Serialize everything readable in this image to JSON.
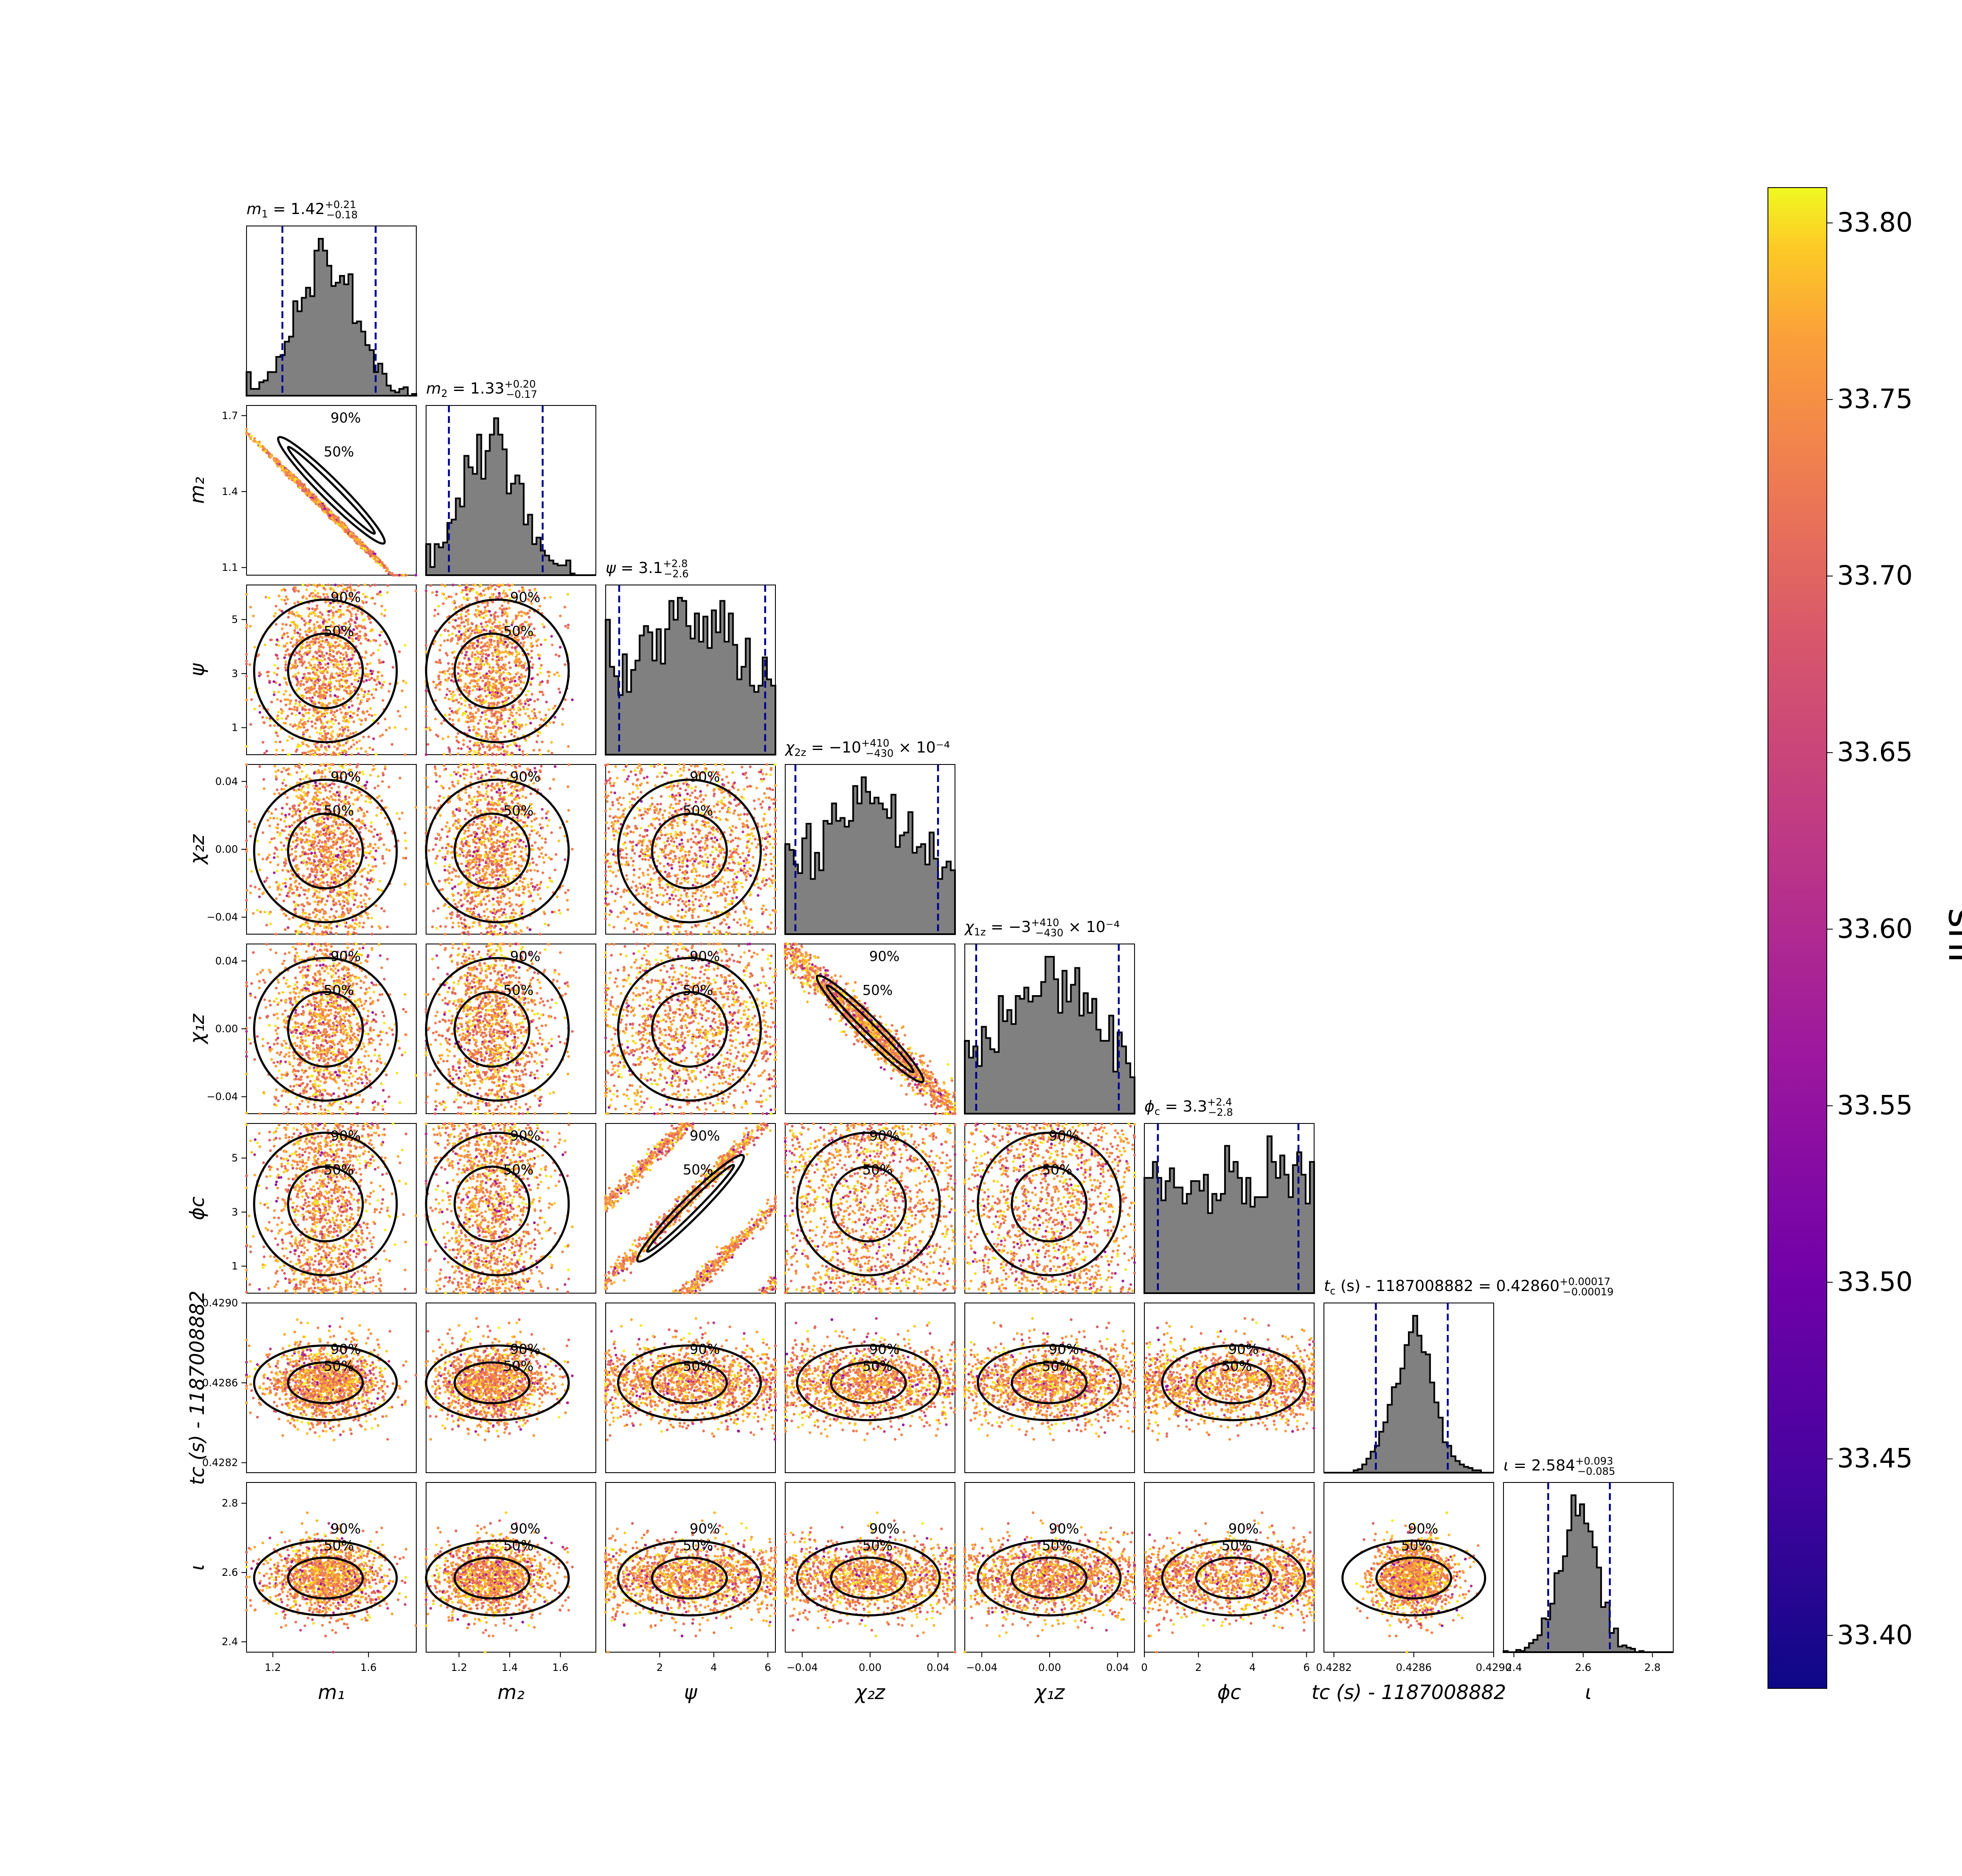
{
  "chart_data": {
    "type": "corner",
    "parameters": [
      {
        "key": "m1",
        "label": "m₁",
        "title": "m₁ = 1.42 (+0.21 / −0.18)",
        "title_main": "m",
        "title_sub": "1",
        "title_val": "= 1.42",
        "title_up": "+0.21",
        "title_dn": "−0.18",
        "median": 1.42,
        "err_plus": 0.21,
        "err_minus": 0.18,
        "range": [
          1.09,
          1.8
        ],
        "ticks": [
          1.2,
          1.6
        ],
        "tick_labels": [
          "1.2",
          "1.6"
        ],
        "sd": 0.12,
        "skew": 0.0
      },
      {
        "key": "m2",
        "label": "m₂",
        "title": "m₂ = 1.33 (+0.20 / −0.17)",
        "title_main": "m",
        "title_sub": "2",
        "title_val": "= 1.33",
        "title_up": "+0.20",
        "title_dn": "−0.17",
        "median": 1.33,
        "err_plus": 0.2,
        "err_minus": 0.17,
        "range": [
          1.07,
          1.74
        ],
        "ticks": [
          1.1,
          1.4,
          1.7
        ],
        "tick_labels": [
          "1.1",
          "1.4",
          "1.7"
        ],
        "x_ticks": [
          1.2,
          1.4,
          1.6
        ],
        "x_tick_labels": [
          "1.2",
          "1.4",
          "1.6"
        ],
        "sd": 0.115,
        "skew": 0.0
      },
      {
        "key": "psi",
        "label": "ψ",
        "title": "ψ = 3.1 (+2.8 / −2.6)",
        "title_main": "ψ",
        "title_sub": "",
        "title_val": "= 3.1",
        "title_up": "+2.8",
        "title_dn": "−2.6",
        "median": 3.1,
        "err_plus": 2.8,
        "err_minus": 2.6,
        "range": [
          0.0,
          6.28
        ],
        "ticks": [
          1,
          3,
          5
        ],
        "tick_labels": [
          "1",
          "3",
          "5"
        ],
        "x_ticks": [
          2,
          4,
          6
        ],
        "x_tick_labels": [
          "2",
          "4",
          "6"
        ],
        "sd": 1.9,
        "skew": 0.0
      },
      {
        "key": "chi2z",
        "label": "χ₂z",
        "title": "χ₂z = −10 (+410 / −430) × 10⁻⁴",
        "title_main": "χ",
        "title_sub": "2z",
        "title_val": "= −10",
        "title_up": "+410",
        "title_dn": "−430",
        "title_suffix": "× 10⁻⁴",
        "median": -0.001,
        "err_plus": 0.041,
        "err_minus": 0.043,
        "range": [
          -0.05,
          0.05
        ],
        "ticks": [
          -0.04,
          0.0,
          0.04
        ],
        "tick_labels": [
          "−0.04",
          "0.00",
          "0.04"
        ],
        "sd": 0.028,
        "skew": 0.0
      },
      {
        "key": "chi1z",
        "label": "χ₁z",
        "title": "χ₁z = −3 (+410 / −430) × 10⁻⁴",
        "title_main": "χ",
        "title_sub": "1z",
        "title_val": "= −3",
        "title_up": "+410",
        "title_dn": "−430",
        "title_suffix": "× 10⁻⁴",
        "median": -0.0003,
        "err_plus": 0.041,
        "err_minus": 0.043,
        "range": [
          -0.05,
          0.05
        ],
        "ticks": [
          -0.04,
          0.0,
          0.04
        ],
        "tick_labels": [
          "−0.04",
          "0.00",
          "0.04"
        ],
        "sd": 0.028,
        "skew": 0.0
      },
      {
        "key": "phic",
        "label": "ϕc",
        "title": "ϕc = 3.3 (+2.4 / −2.8)",
        "title_main": "ϕ",
        "title_sub": "c",
        "title_val": "= 3.3",
        "title_up": "+2.4",
        "title_dn": "−2.8",
        "median": 3.3,
        "err_plus": 2.4,
        "err_minus": 2.8,
        "range": [
          0.0,
          6.28
        ],
        "ticks": [
          1,
          3,
          5
        ],
        "tick_labels": [
          "1",
          "3",
          "5"
        ],
        "x_ticks": [
          0,
          2,
          4,
          6
        ],
        "x_tick_labels": [
          "0",
          "2",
          "4",
          "6"
        ],
        "sd": 1.9,
        "skew": 0.0
      },
      {
        "key": "tc",
        "label": "tc (s) - 1187008882",
        "title": "tc (s) - 1187008882 = 0.42860 (+0.00017 / −0.00019)",
        "title_main": "t",
        "title_sub": "c",
        "title_val": "(s) - 1187008882 = 0.42860",
        "title_up": "+0.00017",
        "title_dn": "−0.00019",
        "median": 0.4286,
        "err_plus": 0.00017,
        "err_minus": 0.00019,
        "range": [
          0.42815,
          0.429
        ],
        "ticks": [
          0.4282,
          0.4286,
          0.429
        ],
        "tick_labels": [
          "0.4282",
          "0.4286",
          "0.4290"
        ],
        "sd": 0.0001,
        "skew": 0.0
      },
      {
        "key": "iota",
        "label": "ι",
        "title": "ι = 2.584 (+0.093 / −0.085)",
        "title_main": "ι",
        "title_sub": "",
        "title_val": "= 2.584",
        "title_up": "+0.093",
        "title_dn": "−0.085",
        "median": 2.584,
        "err_plus": 0.093,
        "err_minus": 0.085,
        "range": [
          2.37,
          2.86
        ],
        "ticks": [
          2.4,
          2.6,
          2.8
        ],
        "tick_labels": [
          "2.4",
          "2.6",
          "2.8"
        ],
        "sd": 0.055,
        "skew": 0.0
      }
    ],
    "contour_levels": [
      "50%",
      "90%"
    ],
    "m1_m2_correlation": -0.99,
    "chi1z_chi2z_correlation": -0.95,
    "psi_phic_relation": "diagonal bands, wrapping",
    "colorbar": {
      "label": "snr",
      "ticks": [
        33.4,
        33.45,
        33.5,
        33.55,
        33.6,
        33.65,
        33.7,
        33.75,
        33.8
      ],
      "tick_labels": [
        "33.40",
        "33.45",
        "33.50",
        "33.55",
        "33.60",
        "33.65",
        "33.70",
        "33.75",
        "33.80"
      ],
      "min": 33.385,
      "max": 33.81,
      "colormap": "plasma"
    },
    "colors": {
      "hist_fill": "#808080",
      "hist_edge": "#000000",
      "quantile_line": "#00008b",
      "contour": "#000000"
    }
  }
}
